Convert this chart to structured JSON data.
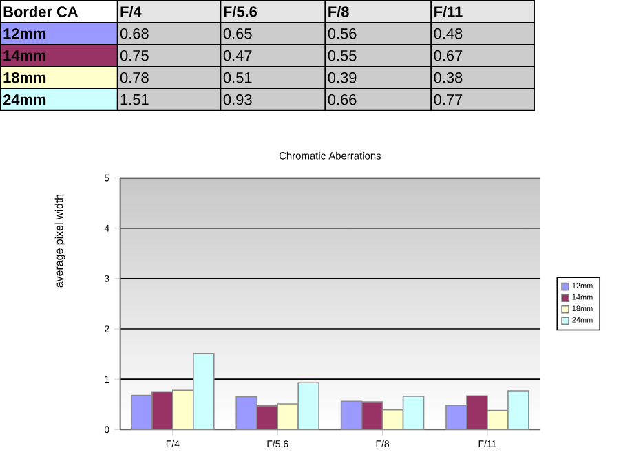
{
  "chart_data": {
    "type": "bar",
    "title": "Chromatic Aberrations",
    "ylabel": "average pixel width",
    "categories": [
      "F/4",
      "F/5.6",
      "F/8",
      "F/11"
    ],
    "series": [
      {
        "name": "12mm",
        "color": "#9999ff",
        "values": [
          0.68,
          0.65,
          0.56,
          0.48
        ]
      },
      {
        "name": "14mm",
        "color": "#993366",
        "values": [
          0.75,
          0.47,
          0.55,
          0.67
        ]
      },
      {
        "name": "18mm",
        "color": "#ffffcc",
        "values": [
          0.78,
          0.51,
          0.39,
          0.38
        ]
      },
      {
        "name": "24mm",
        "color": "#ccffff",
        "values": [
          1.51,
          0.93,
          0.66,
          0.77
        ]
      }
    ],
    "annotations": [
      "Border CA"
    ],
    "data_labels": true,
    "ylim": [
      0,
      5
    ],
    "yticks": [
      0,
      1,
      2,
      3,
      4,
      5
    ],
    "grid": "y",
    "legend": "right"
  }
}
